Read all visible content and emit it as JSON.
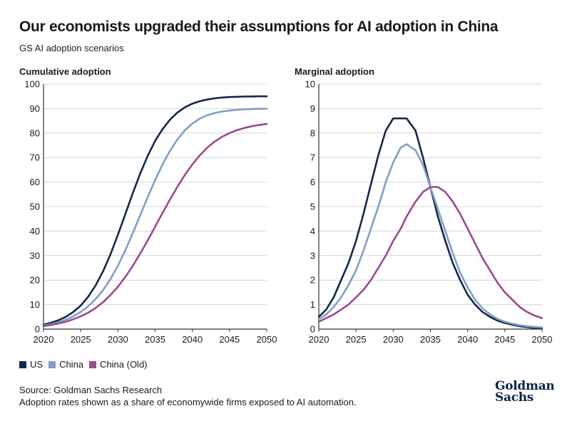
{
  "header": {
    "title": "Our economists upgraded their assumptions for AI adoption in China",
    "subtitle": "GS AI adoption scenarios"
  },
  "footer": {
    "source": "Source: Goldman Sachs Research",
    "note": "Adoption rates shown as a share of economywide firms exposed to AI automation.",
    "logo_line1": "Goldman",
    "logo_line2": "Sachs"
  },
  "legend": [
    {
      "label": "US",
      "color": "#14284b"
    },
    {
      "label": "China",
      "color": "#7fa0c6"
    },
    {
      "label": "China (Old)",
      "color": "#9b4a8e"
    }
  ],
  "chart_data": [
    {
      "type": "line",
      "title": "Cumulative adoption",
      "xlabel": "",
      "ylabel": "",
      "xlim": [
        2020,
        2050
      ],
      "ylim": [
        0,
        100
      ],
      "xticks": [
        2020,
        2025,
        2030,
        2035,
        2040,
        2045,
        2050
      ],
      "yticks": [
        0,
        10,
        20,
        30,
        40,
        50,
        60,
        70,
        80,
        90,
        100
      ],
      "grid": "horizontal",
      "x": [
        2020,
        2021,
        2022,
        2023,
        2024,
        2025,
        2026,
        2027,
        2028,
        2029,
        2030,
        2031,
        2032,
        2033,
        2034,
        2035,
        2036,
        2037,
        2038,
        2039,
        2040,
        2041,
        2042,
        2043,
        2044,
        2045,
        2046,
        2047,
        2048,
        2049,
        2050
      ],
      "series": [
        {
          "name": "US",
          "color": "#14284b",
          "values": [
            1.8,
            2.6,
            3.6,
            5.0,
            7.0,
            9.6,
            13.2,
            17.8,
            23.6,
            30.5,
            38.5,
            47.0,
            55.5,
            63.5,
            70.7,
            76.8,
            81.6,
            85.5,
            88.4,
            90.5,
            92.0,
            93.0,
            93.7,
            94.2,
            94.5,
            94.7,
            94.8,
            94.9,
            94.95,
            95.0,
            95.0
          ]
        },
        {
          "name": "China",
          "color": "#7fa0c6",
          "values": [
            1.4,
            2.0,
            2.8,
            3.8,
            5.2,
            7.0,
            9.3,
            12.2,
            15.9,
            20.4,
            25.9,
            32.2,
            39.2,
            46.5,
            53.8,
            60.8,
            67.2,
            72.8,
            77.4,
            81.1,
            83.9,
            85.9,
            87.3,
            88.2,
            88.8,
            89.2,
            89.5,
            89.7,
            89.8,
            89.9,
            89.9
          ]
        },
        {
          "name": "China (Old)",
          "color": "#9b4a8e",
          "values": [
            1.2,
            1.7,
            2.3,
            3.0,
            4.0,
            5.2,
            6.7,
            8.6,
            11.0,
            13.9,
            17.3,
            21.3,
            25.8,
            30.8,
            36.2,
            41.8,
            47.4,
            52.9,
            58.1,
            62.9,
            67.2,
            70.9,
            74.0,
            76.5,
            78.5,
            80.0,
            81.2,
            82.1,
            82.8,
            83.3,
            83.7
          ]
        }
      ]
    },
    {
      "type": "line",
      "title": "Marginal adoption",
      "xlabel": "",
      "ylabel": "",
      "xlim": [
        2020,
        2050
      ],
      "ylim": [
        0,
        10
      ],
      "xticks": [
        2020,
        2025,
        2030,
        2035,
        2040,
        2045,
        2050
      ],
      "yticks": [
        0,
        1,
        2,
        3,
        4,
        5,
        6,
        7,
        8,
        9,
        10
      ],
      "grid": "horizontal",
      "x": [
        2020,
        2021,
        2022,
        2023,
        2024,
        2025,
        2026,
        2027,
        2028,
        2029,
        2030,
        2031,
        2031.8,
        2033,
        2034,
        2035,
        2036,
        2037,
        2038,
        2039,
        2040,
        2041,
        2042,
        2043,
        2044,
        2045,
        2046,
        2047,
        2048,
        2049,
        2050
      ],
      "series": [
        {
          "name": "US",
          "color": "#14284b",
          "values": [
            0.5,
            0.8,
            1.3,
            2.0,
            2.7,
            3.6,
            4.7,
            5.9,
            7.1,
            8.1,
            8.6,
            8.6,
            8.6,
            8.1,
            7.0,
            5.8,
            4.6,
            3.6,
            2.7,
            2.0,
            1.4,
            1.0,
            0.7,
            0.5,
            0.35,
            0.25,
            0.18,
            0.12,
            0.08,
            0.05,
            0.03
          ]
        },
        {
          "name": "China",
          "color": "#7fa0c6",
          "values": [
            0.4,
            0.6,
            0.9,
            1.3,
            1.8,
            2.4,
            3.2,
            4.1,
            5.0,
            6.0,
            6.8,
            7.4,
            7.55,
            7.3,
            6.7,
            5.8,
            4.9,
            4.0,
            3.1,
            2.3,
            1.7,
            1.2,
            0.85,
            0.6,
            0.42,
            0.3,
            0.22,
            0.16,
            0.12,
            0.09,
            0.07
          ]
        },
        {
          "name": "China (Old)",
          "color": "#9b4a8e",
          "values": [
            0.3,
            0.45,
            0.6,
            0.8,
            1.0,
            1.3,
            1.6,
            2.0,
            2.5,
            3.0,
            3.6,
            4.1,
            4.6,
            5.2,
            5.6,
            5.8,
            5.8,
            5.6,
            5.2,
            4.7,
            4.1,
            3.5,
            2.9,
            2.4,
            1.9,
            1.5,
            1.2,
            0.9,
            0.7,
            0.55,
            0.45
          ]
        }
      ]
    }
  ]
}
